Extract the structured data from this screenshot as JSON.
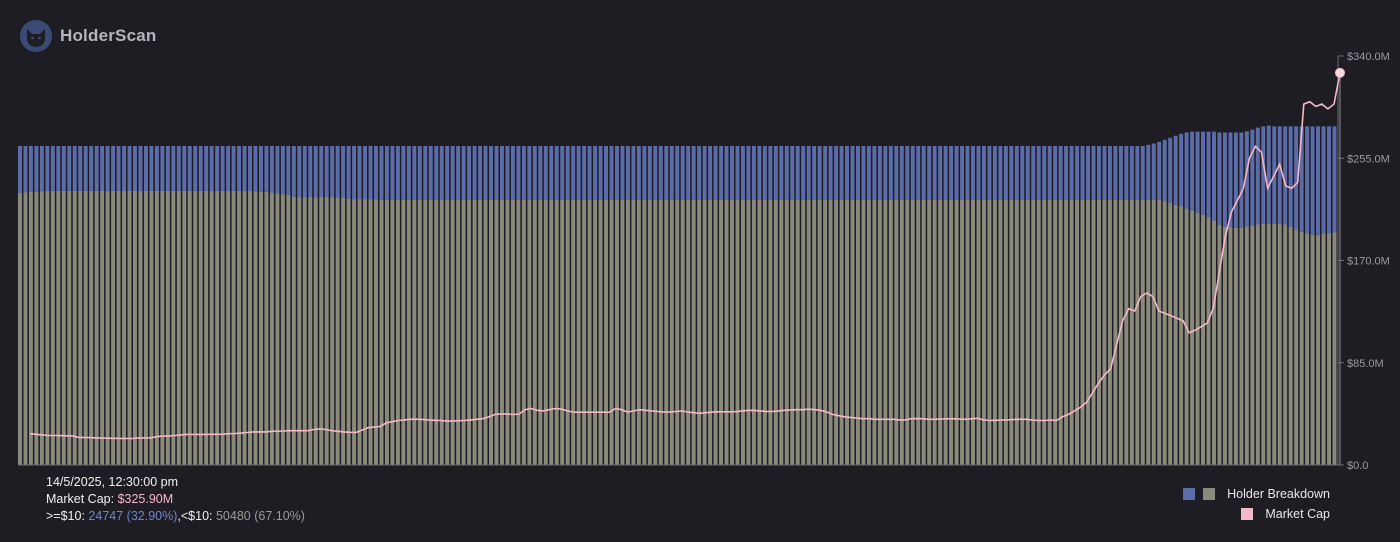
{
  "app": {
    "name": "HolderScan"
  },
  "colors": {
    "background": "#1e1d24",
    "holders_big": "#5b6ca8",
    "holders_small": "#8a8a7c",
    "market_cap": "#f5b8c8"
  },
  "tooltip": {
    "date": "14/5/2025, 12:30:00 pm",
    "market_cap_label": "Market Cap:",
    "market_cap_value": "$325.90M",
    "big_label": ">=$10:",
    "big_value": "24747 (32.90%)",
    "separator": ",",
    "small_label": "<$10:",
    "small_value": "50480 (67.10%)"
  },
  "legend": {
    "holder_breakdown": "Holder Breakdown",
    "market_cap": "Market Cap"
  },
  "chart_data": {
    "type": "bar+line",
    "y_right_label_ticks": [
      "$0.0",
      "$85.0M",
      "$170.0M",
      "$255.0M",
      "$340.0M"
    ],
    "y_right_range": [
      0,
      340
    ],
    "holders_max": 100,
    "holders_total_pct": [
      78,
      78,
      78,
      78,
      78,
      78,
      78,
      78,
      78,
      78,
      78,
      78,
      78,
      78,
      78,
      78,
      78,
      78,
      78,
      78,
      78,
      78,
      78,
      78,
      78,
      78,
      78,
      78,
      78,
      78,
      78,
      78,
      78,
      78,
      78,
      78,
      78,
      78,
      78,
      78,
      78,
      78,
      78,
      78,
      78,
      78,
      78,
      78,
      78,
      78,
      78,
      78,
      78,
      78,
      78,
      78,
      78,
      78,
      78,
      78,
      78,
      78,
      78,
      78,
      78,
      78,
      78,
      78,
      78,
      78,
      78,
      78,
      78,
      78,
      78,
      78,
      78,
      78,
      78,
      78,
      78,
      78,
      78,
      78,
      78,
      78,
      78,
      78,
      78,
      78,
      78,
      78,
      78,
      78,
      78,
      78,
      78,
      78,
      78,
      78,
      78,
      78,
      78,
      78,
      78,
      78,
      78,
      78,
      78,
      78,
      78,
      78,
      78,
      78,
      78,
      78,
      78,
      78,
      78,
      78,
      78,
      78,
      78,
      78,
      78,
      78,
      78,
      78,
      78,
      78,
      78,
      78,
      78,
      78,
      78,
      78,
      78,
      78,
      78,
      78,
      78,
      78,
      78,
      78,
      78,
      78,
      78,
      78,
      78,
      78,
      78,
      78,
      78,
      78,
      78,
      78,
      78,
      78,
      78,
      78,
      78,
      78,
      78,
      78,
      78,
      78,
      78,
      78,
      78,
      78,
      78,
      78,
      78,
      78,
      78,
      78,
      78,
      78,
      78,
      78,
      78,
      78,
      78,
      78,
      78,
      78,
      78,
      78,
      78,
      78,
      78,
      78,
      78,
      78,
      78,
      78,
      78,
      78,
      78,
      78,
      78,
      78,
      78,
      78,
      78,
      78,
      78.3,
      78.6,
      79,
      79.5,
      80,
      80.5,
      81,
      81.3,
      81.5,
      81.5,
      81.5,
      81.5,
      81.5,
      81.3,
      81.3,
      81.3,
      81.3,
      81.3,
      81.6,
      82,
      82.5,
      82.8,
      83,
      82.8,
      82.8,
      82.8,
      82.8,
      82.8,
      82.8,
      82.8,
      82.8,
      82.8,
      82.8,
      82.8,
      82.8
    ],
    "holders_small_pct": [
      66.5,
      66.7,
      66.8,
      66.8,
      66.9,
      67,
      67,
      67,
      67,
      67,
      67,
      67,
      67,
      67,
      67,
      67,
      67,
      67,
      67,
      67,
      67,
      67,
      67,
      67,
      67,
      67,
      67,
      67,
      67,
      67,
      67,
      67,
      67,
      67,
      67,
      67,
      67,
      67,
      67,
      67,
      67,
      67,
      67,
      66.9,
      66.8,
      66.8,
      66.6,
      66.4,
      66.2,
      66,
      65.6,
      65.5,
      65.5,
      65.5,
      65.5,
      65.5,
      65.5,
      65.5,
      65.4,
      65.3,
      65.1,
      65,
      65,
      65,
      65,
      64.9,
      64.8,
      64.8,
      64.8,
      64.8,
      64.8,
      64.8,
      64.8,
      64.8,
      64.8,
      64.8,
      64.8,
      64.8,
      64.8,
      64.8,
      64.8,
      64.8,
      64.8,
      64.8,
      64.8,
      64.8,
      64.8,
      64.8,
      64.8,
      64.8,
      64.8,
      64.8,
      64.8,
      64.8,
      64.8,
      64.8,
      64.8,
      64.8,
      64.8,
      64.8,
      64.8,
      64.8,
      64.8,
      64.8,
      64.8,
      64.8,
      64.8,
      64.8,
      64.8,
      64.8,
      64.8,
      64.8,
      64.8,
      64.8,
      64.8,
      64.8,
      64.8,
      64.8,
      64.8,
      64.8,
      64.8,
      64.8,
      64.8,
      64.8,
      64.8,
      64.8,
      64.8,
      64.8,
      64.8,
      64.8,
      64.8,
      64.8,
      64.8,
      64.8,
      64.8,
      64.8,
      64.8,
      64.8,
      64.8,
      64.8,
      64.8,
      64.8,
      64.8,
      64.8,
      64.8,
      64.8,
      64.8,
      64.8,
      64.8,
      64.8,
      64.8,
      64.8,
      64.8,
      64.8,
      64.8,
      64.8,
      64.8,
      64.8,
      64.8,
      64.8,
      64.8,
      64.8,
      64.8,
      64.8,
      64.8,
      64.8,
      64.8,
      64.8,
      64.8,
      64.8,
      64.8,
      64.8,
      64.8,
      64.8,
      64.8,
      64.8,
      64.8,
      64.8,
      64.8,
      64.8,
      64.8,
      64.8,
      64.8,
      64.8,
      64.8,
      64.8,
      64.8,
      64.8,
      64.8,
      64.8,
      64.8,
      64.8,
      64.8,
      64.8,
      64.8,
      64.8,
      64.8,
      64.8,
      64.8,
      64.8,
      64.8,
      64.8,
      64.8,
      64.8,
      64.8,
      64.8,
      64.8,
      64.8,
      64.8,
      64.5,
      64.2,
      63.6,
      63.2,
      62.7,
      62.2,
      61.6,
      61.2,
      60.6,
      59.8,
      58.7,
      58.2,
      58.2,
      58,
      58,
      58.3,
      58.6,
      58.8,
      59,
      59,
      59,
      59,
      58.8,
      58.2,
      57.6,
      57,
      56.6,
      56.3,
      56.2,
      56.6,
      56.6,
      56.9,
      56.9,
      56.9,
      56.3,
      56,
      56,
      56,
      56.2,
      56.2,
      56
    ],
    "market_cap_m": [
      26,
      25.5,
      25,
      24.5,
      24.5,
      24.4,
      24.3,
      24.2,
      23,
      22.8,
      22.8,
      22.5,
      22.4,
      22.3,
      22.2,
      22.1,
      22,
      22,
      22.5,
      22.5,
      22.6,
      23.5,
      24,
      24,
      24.5,
      25,
      25.4,
      25.4,
      25.4,
      25.4,
      25.5,
      25.5,
      25.6,
      26,
      26.2,
      26.5,
      27,
      27.5,
      27.5,
      27.5,
      28,
      28.1,
      28.3,
      28.5,
      28.5,
      28.5,
      28.5,
      29.5,
      30,
      29.5,
      28.5,
      28,
      27.5,
      27.2,
      27,
      29,
      31,
      31.5,
      32,
      35,
      36,
      37,
      37.5,
      38,
      38.1,
      37.9,
      37.5,
      37.2,
      37,
      36.5,
      36.5,
      36.8,
      37,
      37.5,
      38,
      38.5,
      40,
      42,
      42.5,
      42.5,
      42,
      42.3,
      46,
      47,
      45.5,
      45,
      46,
      47,
      46.5,
      45,
      44,
      43.9,
      43.9,
      43.9,
      43.9,
      43.9,
      43.9,
      47,
      46,
      44,
      45,
      46,
      45.5,
      45,
      44.5,
      44,
      44,
      44.5,
      45,
      44,
      43.5,
      43,
      43.5,
      44,
      44.2,
      44.2,
      44.2,
      44.4,
      45,
      45.5,
      45.4,
      45,
      44.5,
      44.5,
      45,
      45.5,
      45.8,
      46,
      46,
      46.4,
      46,
      45.5,
      44,
      42,
      41,
      40,
      39.5,
      39,
      38.5,
      38.5,
      38,
      38,
      38,
      38,
      37.5,
      37.5,
      38.5,
      38.6,
      38.4,
      38,
      38,
      38.2,
      38.4,
      38.4,
      38.2,
      38,
      38.4,
      38.8,
      37.5,
      37,
      37.2,
      37.4,
      37.6,
      37.8,
      38,
      38,
      37.4,
      37,
      37,
      37.4,
      37,
      40,
      42,
      45,
      48,
      52,
      60,
      68,
      75,
      80,
      100,
      120,
      130,
      128,
      140,
      143,
      140,
      128,
      126,
      124,
      122,
      120,
      110,
      112,
      115,
      118,
      130,
      160,
      190,
      210,
      220,
      230,
      255,
      265,
      260,
      230,
      240,
      250,
      232,
      230,
      235,
      300,
      302,
      298,
      300,
      296,
      300,
      326
    ],
    "highlight_index": -1
  }
}
